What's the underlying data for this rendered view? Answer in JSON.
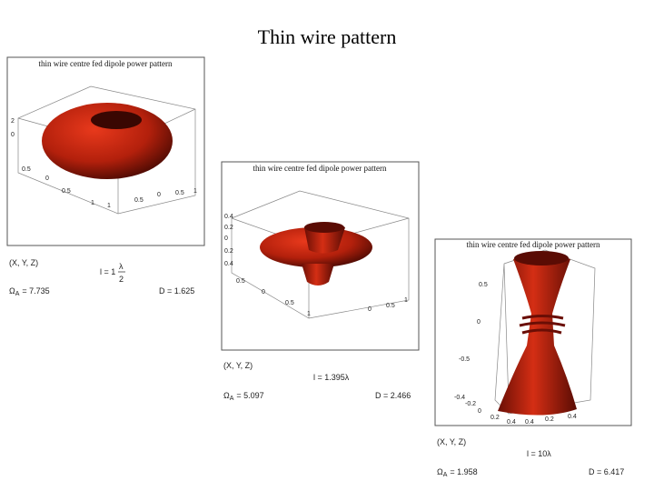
{
  "title": "Thin wire pattern",
  "panels": [
    {
      "plot_title": "thin wire centre fed dipole power pattern",
      "ticks": [
        "2",
        "0",
        "0.5",
        "0",
        "0.5",
        "1",
        "1",
        "0.5",
        "0",
        "0.5",
        "1"
      ],
      "coords": "(X, Y, Z)",
      "length": "l = 1",
      "length_num": "λ",
      "length_den": "2",
      "omega": "Ω",
      "omega_sub": "A",
      "omega_value": "= 7.735",
      "directivity": "D = 1.625"
    },
    {
      "plot_title": "thin wire centre fed dipole power pattern",
      "ticks": [
        "0.4",
        "0.2",
        "0",
        "0.2",
        "0.4",
        "0.5",
        "0",
        "0.5",
        "1",
        "1",
        "0.5",
        "0"
      ],
      "coords": "(X, Y, Z)",
      "length": "l = 1.395λ",
      "omega": "Ω",
      "omega_sub": "A",
      "omega_value": "= 5.097",
      "directivity": "D = 2.466"
    },
    {
      "plot_title": "thin wire centre fed dipole power pattern",
      "ticks": [
        "0.5",
        "0",
        "-0.5",
        "-0.4",
        "-0.2",
        "0",
        "0.2",
        "0.4",
        "0.4",
        "0.2",
        "0.4"
      ],
      "coords": "(X, Y, Z)",
      "length": "l = 10λ",
      "omega": "Ω",
      "omega_sub": "A",
      "omega_value": "= 1.958",
      "directivity": "D = 6.417"
    }
  ]
}
